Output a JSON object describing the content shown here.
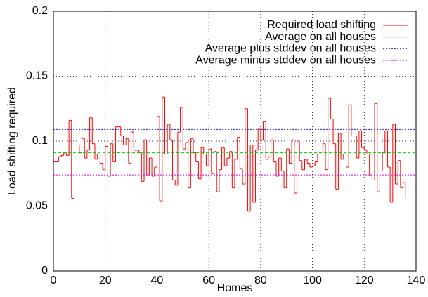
{
  "chart_data": {
    "type": "step",
    "xlabel": "Homes",
    "ylabel": "Load shifting required",
    "x": [
      0,
      1,
      2,
      3,
      4,
      5,
      6,
      7,
      8,
      9,
      10,
      11,
      12,
      13,
      14,
      15,
      16,
      17,
      18,
      19,
      20,
      21,
      22,
      23,
      24,
      25,
      26,
      27,
      28,
      29,
      30,
      31,
      32,
      33,
      34,
      35,
      36,
      37,
      38,
      39,
      40,
      41,
      42,
      43,
      44,
      45,
      46,
      47,
      48,
      49,
      50,
      51,
      52,
      53,
      54,
      55,
      56,
      57,
      58,
      59,
      60,
      61,
      62,
      63,
      64,
      65,
      66,
      67,
      68,
      69,
      70,
      71,
      72,
      73,
      74,
      75,
      76,
      77,
      78,
      79,
      80,
      81,
      82,
      83,
      84,
      85,
      86,
      87,
      88,
      89,
      90,
      91,
      92,
      93,
      94,
      95,
      96,
      97,
      98,
      99,
      100,
      101,
      102,
      103,
      104,
      105,
      106,
      107,
      108,
      109,
      110,
      111,
      112,
      113,
      114,
      115,
      116,
      117,
      118,
      119,
      120,
      121,
      122,
      123,
      124,
      125,
      126,
      127,
      128,
      129,
      130,
      131,
      132,
      133,
      134,
      135,
      136
    ],
    "series": [
      {
        "name": "Required load shifting",
        "color": "#ff0000",
        "line_style": "solid",
        "values": [
          0.084,
          0.084,
          0.088,
          0.089,
          0.091,
          0.089,
          0.116,
          0.056,
          0.097,
          0.097,
          0.091,
          0.102,
          0.087,
          0.093,
          0.118,
          0.098,
          0.086,
          0.09,
          0.083,
          0.078,
          0.096,
          0.073,
          0.098,
          0.084,
          0.111,
          0.111,
          0.104,
          0.097,
          0.102,
          0.083,
          0.107,
          0.093,
          0.093,
          0.091,
          0.069,
          0.101,
          0.074,
          0.087,
          0.073,
          0.08,
          0.119,
          0.054,
          0.134,
          0.09,
          0.113,
          0.101,
          0.07,
          0.066,
          0.107,
          0.126,
          0.094,
          0.099,
          0.064,
          0.102,
          0.091,
          0.084,
          0.071,
          0.095,
          0.09,
          0.081,
          0.094,
          0.075,
          0.092,
          0.061,
          0.078,
          0.095,
          0.081,
          0.087,
          0.092,
          0.064,
          0.086,
          0.103,
          0.079,
          0.067,
          0.125,
          0.046,
          0.097,
          0.053,
          0.093,
          0.11,
          0.101,
          0.115,
          0.086,
          0.088,
          0.101,
          0.084,
          0.073,
          0.087,
          0.077,
          0.064,
          0.094,
          0.083,
          0.101,
          0.06,
          0.1,
          0.085,
          0.078,
          0.086,
          0.083,
          0.08,
          0.081,
          0.084,
          0.09,
          0.09,
          0.098,
          0.078,
          0.133,
          0.117,
          0.098,
          0.063,
          0.106,
          0.086,
          0.09,
          0.08,
          0.128,
          0.104,
          0.104,
          0.087,
          0.108,
          0.095,
          0.093,
          0.09,
          0.074,
          0.07,
          0.129,
          0.061,
          0.077,
          0.091,
          0.108,
          0.08,
          0.053,
          0.113,
          0.067,
          0.085,
          0.064,
          0.068,
          0.056
        ]
      },
      {
        "name": "Average on all houses",
        "color": "#00cc00",
        "line_style": "dashed",
        "value": 0.091
      },
      {
        "name": "Average plus stddev on all houses",
        "color": "#2020c0",
        "line_style": "dotted",
        "value": 0.109
      },
      {
        "name": "Average minus stddev on all houses",
        "color": "#e000e0",
        "line_style": "dotted",
        "value": 0.074
      }
    ],
    "xlim": [
      0,
      140
    ],
    "xticks": [
      0,
      20,
      40,
      60,
      80,
      100,
      120,
      140
    ],
    "ylim": [
      0,
      0.2
    ],
    "yticks": [
      0,
      0.05,
      0.1,
      0.15,
      0.2
    ],
    "grid": true,
    "legend": "top-right"
  }
}
